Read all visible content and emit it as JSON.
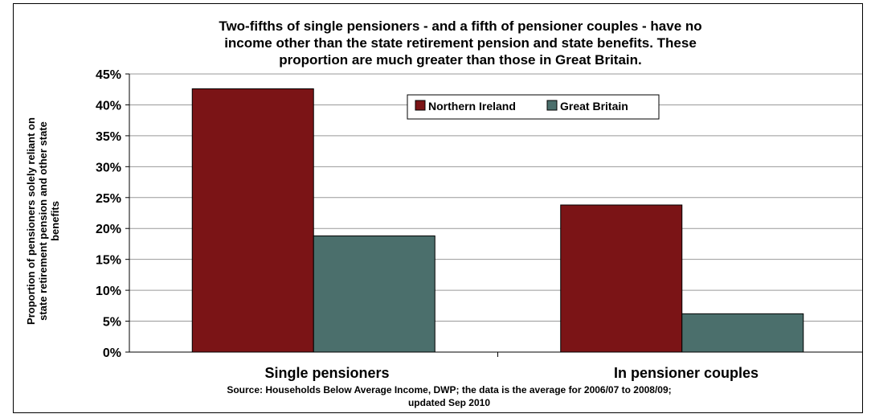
{
  "chart_data": {
    "type": "bar",
    "title_lines": [
      "Two-fifths of single pensioners - and a fifth of pensioner couples - have no",
      "income other than the state retirement pension and state benefits.  These",
      "proportion are much greater than those in Great Britain."
    ],
    "ylabel_lines": [
      "Proportion of pensioners solely reliant on",
      "state retirement pension and other state",
      "benefits"
    ],
    "categories": [
      "Single pensioners",
      "In pensioner couples"
    ],
    "series": [
      {
        "name": "Northern Ireland",
        "values": [
          0.426,
          0.238
        ],
        "color": "#7b1416"
      },
      {
        "name": "Great Britain",
        "values": [
          0.188,
          0.062
        ],
        "color": "#4b6f6c"
      }
    ],
    "ylim": [
      0,
      0.45
    ],
    "yticks": [
      "0%",
      "5%",
      "10%",
      "15%",
      "20%",
      "25%",
      "30%",
      "35%",
      "40%",
      "45%"
    ],
    "grid": true,
    "legend_position": "top-center",
    "source_lines": [
      "Source: Households Below Average Income, DWP; the data is the average for 2006/07 to 2008/09;",
      "updated Sep 2010"
    ]
  }
}
